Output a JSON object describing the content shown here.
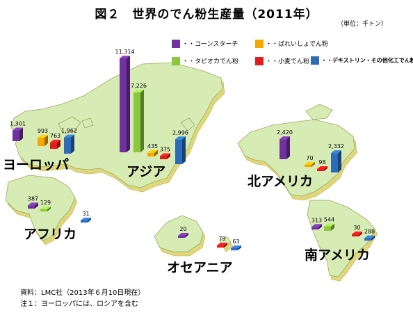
{
  "title": "図２　世界のでん粉生産量（2011年）",
  "unit": "（単位：千トン）",
  "notes": [
    "資料：LMC社（2013年６月10日現在）",
    "注１：ヨーロッパには、ロシアを含む"
  ],
  "colors": {
    "corn": "#7030a0",
    "tapioca": "#8dc63f",
    "wheat": "#e41a1c",
    "potato": "#f5a800",
    "modified": "#2b6cb8",
    "land": "#d7ecb4",
    "land_edge": "#9aa85c",
    "land_side": "#e0d77a"
  },
  "legend": [
    {
      "key": "corn",
      "label": "・・コーンスターチ"
    },
    {
      "key": "potato",
      "label": "・・ばれいしょでん粉"
    },
    {
      "key": "tapioca",
      "label": "・・タピオカでん粉"
    },
    {
      "key": "wheat",
      "label": "・・小麦でん粉"
    },
    {
      "key": "modified",
      "label": "・・デキストリン・その他化工でん粉"
    }
  ],
  "chart_data": {
    "type": "bar",
    "title": "図２　世界のでん粉生産量（2011年）",
    "unit": "千トン",
    "series_names": {
      "corn": "コーンスターチ",
      "potato": "ばれいしょでん粉",
      "tapioca": "タピオカでん粉",
      "wheat": "小麦でん粉",
      "modified": "デキストリン・その他化工でん粉"
    },
    "regions": [
      {
        "name": "ヨーロッパ",
        "values": [
          {
            "series": "corn",
            "value": 1301
          },
          {
            "series": "potato",
            "value": 993
          },
          {
            "series": "wheat",
            "value": 763
          },
          {
            "series": "modified",
            "value": 1962
          }
        ]
      },
      {
        "name": "アジア",
        "values": [
          {
            "series": "corn",
            "value": 11314
          },
          {
            "series": "tapioca",
            "value": 7226
          },
          {
            "series": "potato",
            "value": 435
          },
          {
            "series": "wheat",
            "value": 375
          },
          {
            "series": "modified",
            "value": 2996
          }
        ]
      },
      {
        "name": "北アメリカ",
        "values": [
          {
            "series": "corn",
            "value": 2420
          },
          {
            "series": "potato",
            "value": 70
          },
          {
            "series": "wheat",
            "value": 98
          },
          {
            "series": "modified",
            "value": 2332
          }
        ]
      },
      {
        "name": "アフリカ",
        "values": [
          {
            "series": "corn",
            "value": 387
          },
          {
            "series": "tapioca",
            "value": 129
          },
          {
            "series": "modified",
            "value": 31
          }
        ]
      },
      {
        "name": "オセアニア",
        "values": [
          {
            "series": "corn",
            "value": 20
          },
          {
            "series": "wheat",
            "value": 79
          },
          {
            "series": "modified",
            "value": 63
          }
        ]
      },
      {
        "name": "南アメリカ",
        "values": [
          {
            "series": "corn",
            "value": 313
          },
          {
            "series": "tapioca",
            "value": 544
          },
          {
            "series": "wheat",
            "value": 30
          },
          {
            "series": "modified",
            "value": 288
          }
        ]
      }
    ]
  }
}
